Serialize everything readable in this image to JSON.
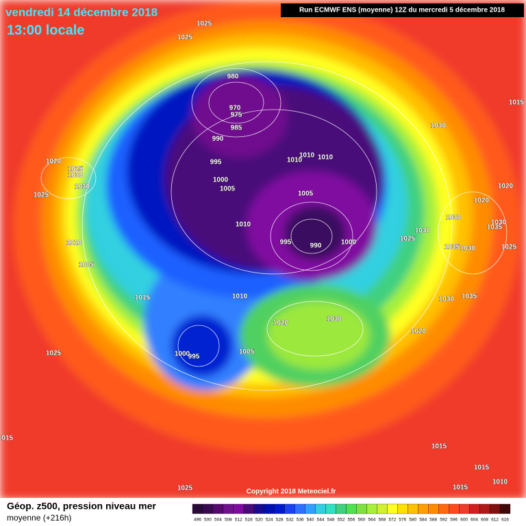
{
  "header": {
    "date": "vendredi 14 décembre 2018",
    "time": "13:00 locale",
    "run": "Run ECMWF ENS (moyenne) 12Z du mercredi 5 décembre 2018"
  },
  "footer": {
    "title": "Géop. z500, pression niveau mer",
    "subtitle": "moyenne  (+216h)",
    "copyright": "Copyright 2018 Meteociel.fr"
  },
  "legend": {
    "levels": [
      496,
      500,
      504,
      508,
      512,
      516,
      520,
      524,
      528,
      532,
      536,
      540,
      544,
      548,
      552,
      556,
      560,
      564,
      568,
      572,
      576,
      580,
      584,
      588,
      592,
      596,
      600,
      604,
      608,
      612,
      616
    ]
  },
  "isobar_labels": [
    1025,
    1025,
    980,
    970,
    975,
    985,
    990,
    995,
    1010,
    1010,
    1010,
    1000,
    1005,
    1005,
    1010,
    995,
    990,
    1000,
    1030,
    1015,
    1020,
    1025,
    1030,
    1030,
    1025,
    1010,
    1005,
    1015,
    1010,
    1020,
    1030,
    1020,
    1025,
    1000,
    995,
    1005,
    1025,
    1030,
    1030,
    1035,
    1030,
    1020,
    1020,
    1035,
    1030,
    1025,
    1030,
    1035,
    1015,
    1015,
    1015,
    1010,
    1025,
    1015
  ]
}
